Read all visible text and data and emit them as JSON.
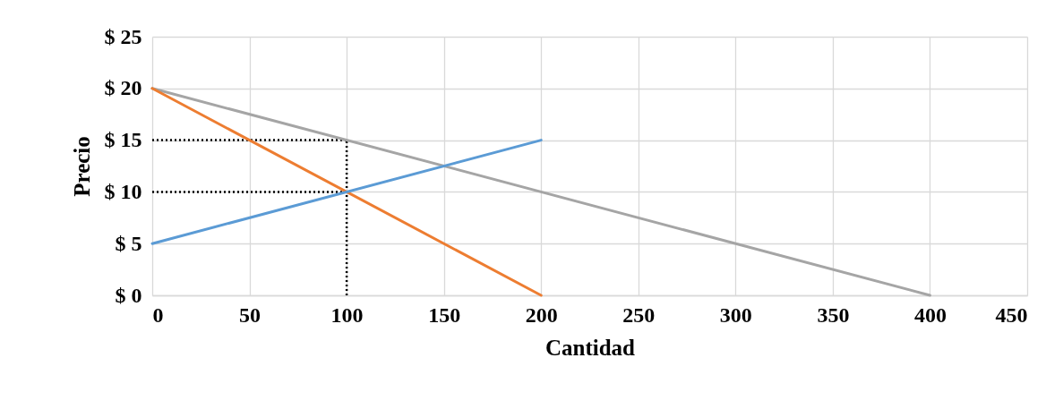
{
  "chart_data": {
    "type": "line",
    "xlabel": "Cantidad",
    "ylabel": "Precio",
    "xlim": [
      0,
      450
    ],
    "xticks": [
      0,
      50,
      100,
      150,
      200,
      250,
      300,
      350,
      400,
      450
    ],
    "ylim": [
      0,
      25
    ],
    "yticks": [
      {
        "value": 0,
        "label": "$ 0"
      },
      {
        "value": 5,
        "label": "$ 5"
      },
      {
        "value": 10,
        "label": "$ 10"
      },
      {
        "value": 15,
        "label": "$ 15"
      },
      {
        "value": 20,
        "label": "$ 20"
      },
      {
        "value": 25,
        "label": "$ 25"
      }
    ],
    "grid": true,
    "series": [
      {
        "color": "#000000",
        "line_style": "dotted",
        "x": [
          0,
          100
        ],
        "values": [
          15,
          15
        ]
      },
      {
        "color": "#000000",
        "line_style": "dotted",
        "x": [
          0,
          100
        ],
        "values": [
          10,
          10
        ]
      },
      {
        "color": "#000000",
        "line_style": "dotted",
        "x": [
          100,
          100
        ],
        "values": [
          0,
          15
        ]
      },
      {
        "color": "#a5a5a5",
        "x": [
          0,
          400
        ],
        "values": [
          20,
          0
        ]
      },
      {
        "color": "#ed7d31",
        "x": [
          0,
          200
        ],
        "values": [
          20,
          0
        ]
      },
      {
        "color": "#5b9bd5",
        "x": [
          0,
          200
        ],
        "values": [
          5,
          15
        ]
      }
    ]
  }
}
